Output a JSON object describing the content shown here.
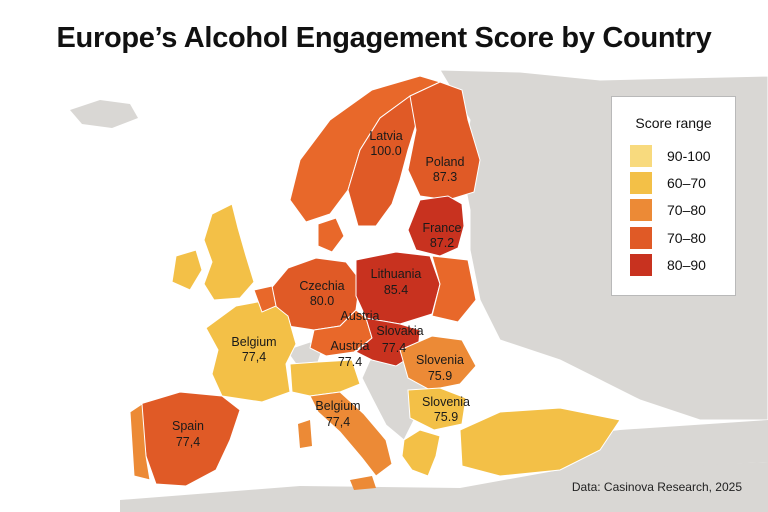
{
  "title": "Europe’s Alcohol Engagement Score by Country",
  "source": "Data: Casinova Research, 2025",
  "legend": {
    "title": "Score range",
    "items": [
      {
        "label": "90-100",
        "color": "#f8da7e"
      },
      {
        "label": "60–70",
        "color": "#f3c047"
      },
      {
        "label": "70–80",
        "color": "#ec8a36"
      },
      {
        "label": "70–80",
        "color": "#e05a26"
      },
      {
        "label": "80–90",
        "color": "#c8321f"
      }
    ]
  },
  "regions": [
    {
      "name": "Latvia",
      "score": "100.0"
    },
    {
      "name": "Poland",
      "score": "87.3"
    },
    {
      "name": "France",
      "score": "87.2"
    },
    {
      "name": "Czechia",
      "score": "80.0"
    },
    {
      "name": "Lithuania",
      "score": "85.4"
    },
    {
      "name": "Austria",
      "score": ""
    },
    {
      "name": "Slovakia",
      "score": "77.4"
    },
    {
      "name": "Belgium",
      "score": "77,4"
    },
    {
      "name": "Austria",
      "score": "77.4"
    },
    {
      "name": "Slovenia",
      "score": "75.9"
    },
    {
      "name": "Belgium",
      "score": "77,4"
    },
    {
      "name": "Slovenia",
      "score": "75.9"
    },
    {
      "name": "Spain",
      "score": "77,4"
    }
  ]
}
